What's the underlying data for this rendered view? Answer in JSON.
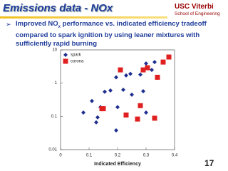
{
  "title": "Emissions data - NOx",
  "logo": {
    "name": "USC Viterbi",
    "school": "School of Engineering"
  },
  "bullet": {
    "symbol": "➢",
    "parts": [
      "Improved NO",
      "x",
      " performance vs. indicated efficiency tradeoff compared to spark ignition by using leaner mixtures with sufficiently rapid burning"
    ]
  },
  "page_number": "17",
  "chart_data": {
    "type": "scatter",
    "x_label": "Indicated Efficiency",
    "xlim": [
      0,
      0.4
    ],
    "xticks": [
      0,
      0.1,
      0.2,
      0.3,
      0.4
    ],
    "ylim": [
      0.01,
      10
    ],
    "yticks": [
      0.01,
      0.1,
      1,
      10
    ],
    "y_scale": "log",
    "legend": "top-left",
    "series": [
      {
        "name": "spark",
        "color": "#1f2f8f",
        "marker": "diamond",
        "x": [
          0.08,
          0.11,
          0.125,
          0.13,
          0.14,
          0.155,
          0.175,
          0.195,
          0.195,
          0.2,
          0.22,
          0.23,
          0.245,
          0.25,
          0.28,
          0.29,
          0.3,
          0.3,
          0.32,
          0.33
        ],
        "values": [
          0.13,
          0.29,
          0.066,
          0.093,
          0.19,
          0.55,
          0.6,
          1.5,
          0.038,
          0.19,
          0.63,
          1.7,
          1.9,
          0.45,
          1.8,
          0.57,
          0.13,
          3.9,
          2.5,
          4.3
        ]
      },
      {
        "name": "corona",
        "color": "#e02020",
        "marker": "square",
        "x": [
          0.145,
          0.15,
          0.21,
          0.23,
          0.27,
          0.28,
          0.29,
          0.305,
          0.33,
          0.34,
          0.36,
          0.38
        ],
        "values": [
          0.17,
          0.17,
          2.5,
          0.11,
          0.083,
          0.21,
          2.5,
          2.9,
          0.088,
          1.5,
          4.3,
          6.1
        ]
      }
    ]
  }
}
